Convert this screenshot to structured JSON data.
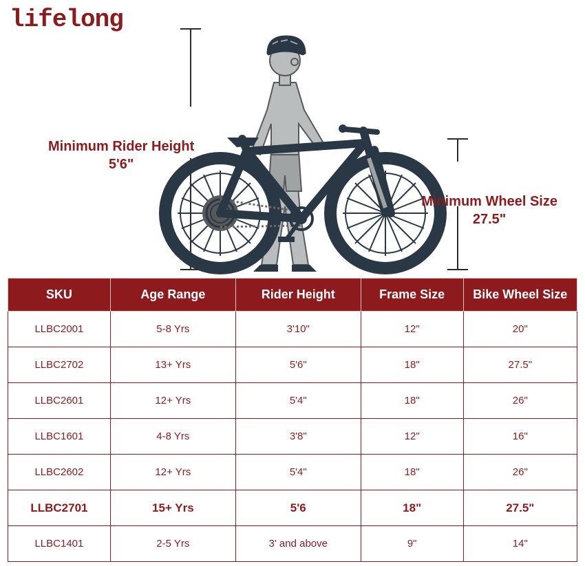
{
  "brand": {
    "name": "lifelong",
    "color": "#8d1a1c"
  },
  "illustration": {
    "rider_label_title": "Minimum Rider Height",
    "rider_label_value": "5'6\"",
    "wheel_label_title": "Minimum Wheel Size",
    "wheel_label_value": "27.5\"",
    "label_color": "#8d1a1c",
    "bike_color": "#2a3845",
    "person_fill": "#b9bdbe",
    "person_stroke": "#58595b",
    "bracket_color": "#2a2a2a"
  },
  "table": {
    "header_bg": "#8d1a1c",
    "header_text_color": "#ffffff",
    "cell_bg": "#ffffff",
    "cell_text_color": "#8d1a1c",
    "border_color": "#8d1a1c",
    "header_border_color": "#e8c5c5",
    "header_fontsize": 18,
    "cell_fontsize": 15,
    "highlight_fontsize": 17,
    "columns": [
      {
        "key": "sku",
        "label": "SKU"
      },
      {
        "key": "age",
        "label": "Age Range"
      },
      {
        "key": "height",
        "label": "Rider Height"
      },
      {
        "key": "frame",
        "label": "Frame Size"
      },
      {
        "key": "wheel",
        "label": "Bike Wheel Size"
      }
    ],
    "rows": [
      {
        "sku": "LLBC2001",
        "age": "5-8 Yrs",
        "height": "3'10\"",
        "frame": "12\"",
        "wheel": "20\"",
        "highlight": false
      },
      {
        "sku": "LLBC2702",
        "age": "13+ Yrs",
        "height": "5'6\"",
        "frame": "18\"",
        "wheel": "27.5\"",
        "highlight": false
      },
      {
        "sku": "LLBC2601",
        "age": "12+ Yrs",
        "height": "5'4\"",
        "frame": "18\"",
        "wheel": "26\"",
        "highlight": false
      },
      {
        "sku": "LLBC1601",
        "age": "4-8 Yrs",
        "height": "3'8\"",
        "frame": "12\"",
        "wheel": "16\"",
        "highlight": false
      },
      {
        "sku": "LLBC2602",
        "age": "12+ Yrs",
        "height": "5'4\"",
        "frame": "18\"",
        "wheel": "26\"",
        "highlight": false
      },
      {
        "sku": "LLBC2701",
        "age": "15+ Yrs",
        "height": "5'6",
        "frame": "18\"",
        "wheel": "27.5\"",
        "highlight": true
      },
      {
        "sku": "LLBC1401",
        "age": "2-5 Yrs",
        "height": "3' and above",
        "frame": "9\"",
        "wheel": "14\"",
        "highlight": false
      }
    ]
  }
}
